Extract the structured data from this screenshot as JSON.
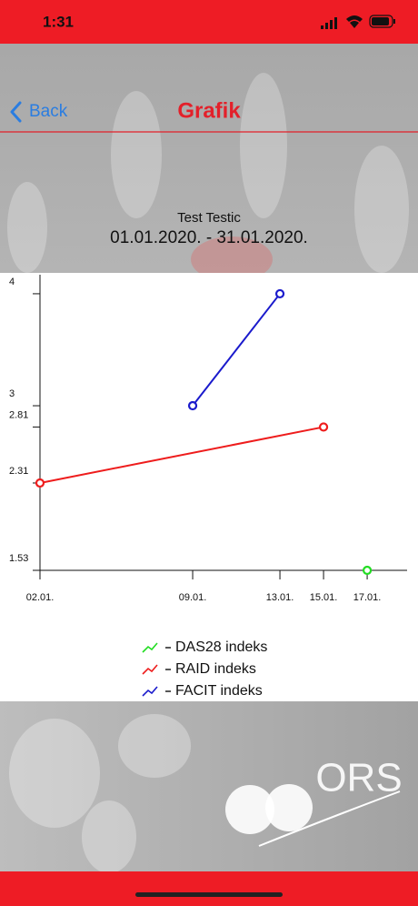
{
  "status_bar": {
    "time": "1:31"
  },
  "nav": {
    "back": "Back",
    "title": "Grafik"
  },
  "header": {
    "name": "Test Testic",
    "period": "01.01.2020. - 31.01.2020."
  },
  "chart_data": {
    "type": "line",
    "xlim": [
      2,
      18.83
    ],
    "ylim": [
      1.53,
      4.17
    ],
    "xticks": [
      {
        "value": 2,
        "label": "02.01."
      },
      {
        "value": 9,
        "label": "09.01."
      },
      {
        "value": 13,
        "label": "13.01."
      },
      {
        "value": 15,
        "label": "15.01."
      },
      {
        "value": 17,
        "label": "17.01."
      }
    ],
    "yticks": [
      1.53,
      2.31,
      2.81,
      3,
      4
    ],
    "series": [
      {
        "name": "DAS28 indeks",
        "color": "#22dd22",
        "x": [
          17
        ],
        "values": [
          1.53
        ]
      },
      {
        "name": "RAID indeks",
        "color": "#ee1c1c",
        "x": [
          2,
          15
        ],
        "values": [
          2.31,
          2.81
        ]
      },
      {
        "name": "FACIT indeks",
        "color": "#1a1acc",
        "x": [
          9,
          13
        ],
        "values": [
          3,
          4
        ]
      }
    ]
  },
  "logo_text": "ORS"
}
